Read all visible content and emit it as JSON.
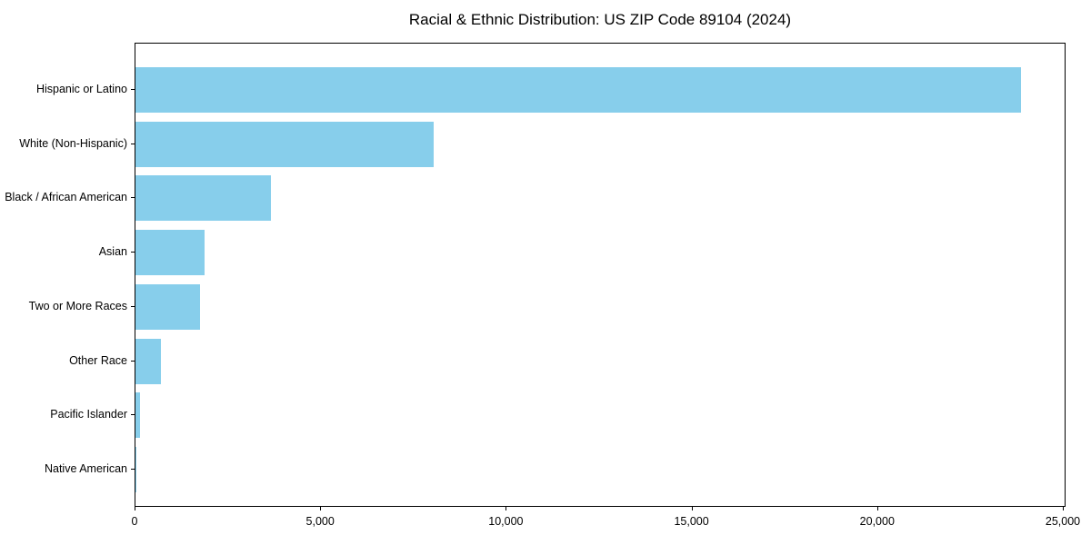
{
  "chart_data": {
    "type": "bar",
    "orientation": "horizontal",
    "title": "Racial & Ethnic Distribution: US ZIP Code 89104 (2024)",
    "categories": [
      "Hispanic or Latino",
      "White (Non-Hispanic)",
      "Black / African American",
      "Asian",
      "Two or More Races",
      "Other Race",
      "Pacific Islander",
      "Native American"
    ],
    "values": [
      23860,
      8020,
      3640,
      1870,
      1750,
      690,
      130,
      30
    ],
    "xlabel": "",
    "ylabel": "",
    "xlim": [
      0,
      25000
    ],
    "x_ticks": [
      0,
      5000,
      10000,
      15000,
      20000,
      25000
    ],
    "x_tick_labels": [
      "0",
      "5,000",
      "10,000",
      "15,000",
      "20,000",
      "25,000"
    ],
    "bar_color": "#87CEEB",
    "axis_color": "#000000",
    "background_color": "#ffffff",
    "grid": false,
    "legend": null
  }
}
